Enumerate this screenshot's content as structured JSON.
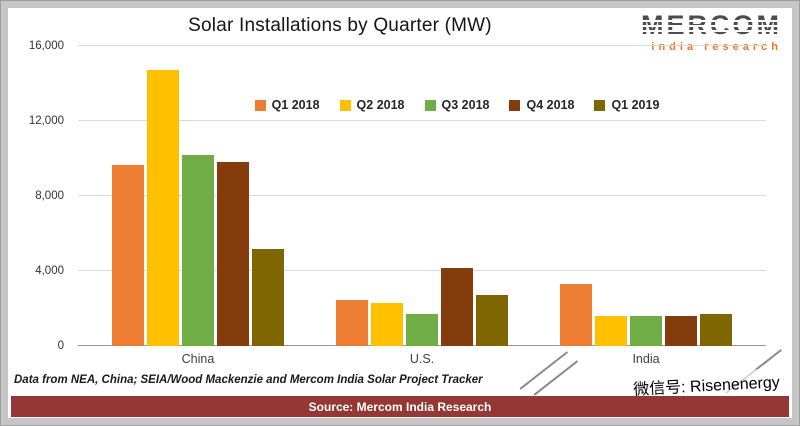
{
  "logo": {
    "name": "MERCOM",
    "subtitle": "india research"
  },
  "watermark": {
    "text": "微信号: Risenenergy"
  },
  "notes": {
    "data_note": "Data from NEA, China; SEIA/Wood Mackenzie and Mercom India Solar Project Tracker",
    "source": "Source: Mercom India Research"
  },
  "chart_data": {
    "type": "bar",
    "title": "Solar Installations by Quarter (MW)",
    "categories": [
      "China",
      "U.S.",
      "India"
    ],
    "series": [
      {
        "name": "Q1 2018",
        "color": "#ED7D31",
        "values": [
          9650,
          2450,
          3300
        ]
      },
      {
        "name": "Q2 2018",
        "color": "#FFC000",
        "values": [
          14700,
          2300,
          1600
        ]
      },
      {
        "name": "Q3 2018",
        "color": "#70AD47",
        "values": [
          10200,
          1700,
          1600
        ]
      },
      {
        "name": "Q4 2018",
        "color": "#843C0C",
        "values": [
          9800,
          4150,
          1600
        ]
      },
      {
        "name": "Q1 2019",
        "color": "#7F6600",
        "values": [
          5200,
          2700,
          1700
        ]
      }
    ],
    "ylim": [
      0,
      16000
    ],
    "ymax": 16000,
    "yticks": [
      {
        "value": 0,
        "label": "0"
      },
      {
        "value": 4000,
        "label": "4,000"
      },
      {
        "value": 8000,
        "label": "8,000"
      },
      {
        "value": 12000,
        "label": "12,000"
      },
      {
        "value": 16000,
        "label": "16,000"
      }
    ],
    "grid": true,
    "legend_position": "top-center"
  }
}
